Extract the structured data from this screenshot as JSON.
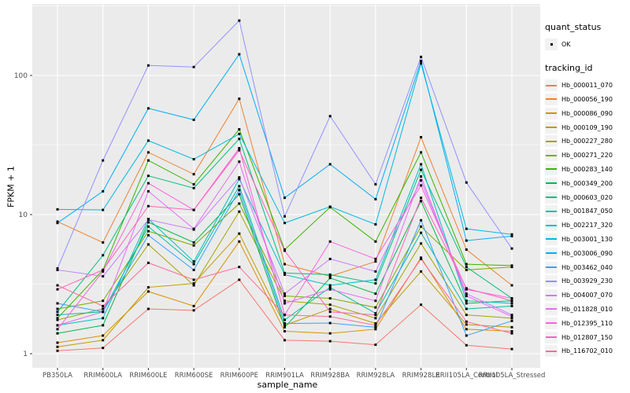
{
  "chart_data": {
    "type": "line",
    "title": "",
    "xlabel": "sample_name",
    "ylabel": "FPKM + 1",
    "y_scale": "log10",
    "y_ticks": [
      1,
      10,
      100
    ],
    "ylim": [
      0.67,
      290
    ],
    "grid": "white major+minor gridlines on grey panel",
    "legend_position": "right",
    "panel_bg": "#EBEBEB",
    "x_categories": [
      "PB350LA",
      "RRIM600LA",
      "RRIM600LE",
      "RRIM600SE",
      "RRIM600PE",
      "RRIM901LA",
      "RRIM928BA",
      "RRIM928LA",
      "RRIM928LE",
      "RRII105LA_Control",
      "RRII105LA_Stressed"
    ],
    "point_shape": "small black square (quant_status OK)",
    "series": [
      {
        "tracking_id": "Hb_000011_070",
        "color": "#F8766D",
        "values": [
          1.05,
          1.1,
          2.1,
          2.05,
          3.4,
          1.25,
          1.23,
          1.16,
          2.25,
          1.15,
          1.08
        ]
      },
      {
        "tracking_id": "Hb_000056_190",
        "color": "#EA8331",
        "values": [
          8.9,
          6.3,
          28.0,
          19.5,
          68.0,
          4.4,
          3.6,
          4.6,
          36.0,
          5.6,
          3.1
        ]
      },
      {
        "tracking_id": "Hb_000086_090",
        "color": "#D89000",
        "values": [
          1.2,
          1.35,
          2.8,
          2.2,
          6.4,
          1.45,
          1.4,
          1.5,
          4.9,
          1.5,
          1.45
        ]
      },
      {
        "tracking_id": "Hb_000109_190",
        "color": "#C09B00",
        "values": [
          1.12,
          1.25,
          3.0,
          3.2,
          7.3,
          1.6,
          2.1,
          1.65,
          3.9,
          1.62,
          1.55
        ]
      },
      {
        "tracking_id": "Hb_000227_280",
        "color": "#A3A500",
        "values": [
          1.75,
          2.1,
          6.1,
          3.1,
          10.5,
          2.4,
          2.25,
          1.8,
          6.2,
          1.9,
          1.8
        ]
      },
      {
        "tracking_id": "Hb_000271_220",
        "color": "#7CAE00",
        "values": [
          2.1,
          2.4,
          7.6,
          6.0,
          12.0,
          2.6,
          2.5,
          2.15,
          8.2,
          4.0,
          4.2
        ]
      },
      {
        "tracking_id": "Hb_000283_140",
        "color": "#39B600",
        "values": [
          1.8,
          4.0,
          24.5,
          16.5,
          41.0,
          5.6,
          11.3,
          6.4,
          28.0,
          4.4,
          4.3
        ]
      },
      {
        "tracking_id": "Hb_000349_200",
        "color": "#00BB4E",
        "values": [
          1.4,
          1.6,
          8.8,
          6.3,
          14.0,
          1.55,
          3.5,
          2.7,
          12.5,
          2.3,
          2.4
        ]
      },
      {
        "tracking_id": "Hb_000603_020",
        "color": "#00BF7D",
        "values": [
          2.0,
          5.1,
          19.0,
          15.5,
          35.0,
          3.8,
          3.7,
          3.2,
          21.0,
          4.2,
          2.5
        ]
      },
      {
        "tracking_id": "Hb_001847_050",
        "color": "#00C1A3",
        "values": [
          1.9,
          2.0,
          8.2,
          4.4,
          16.0,
          1.75,
          3.0,
          1.95,
          7.4,
          2.1,
          2.2
        ]
      },
      {
        "tracking_id": "Hb_002217_320",
        "color": "#00BFC4",
        "values": [
          1.6,
          1.8,
          9.3,
          4.6,
          18.0,
          3.7,
          3.1,
          3.4,
          23.0,
          2.4,
          2.3
        ]
      },
      {
        "tracking_id": "Hb_003001_130",
        "color": "#00BAE0",
        "values": [
          10.9,
          10.8,
          34.0,
          25.0,
          38.0,
          8.7,
          11.4,
          8.5,
          122,
          7.9,
          7.2
        ]
      },
      {
        "tracking_id": "Hb_003006_090",
        "color": "#00B0F6",
        "values": [
          8.7,
          14.7,
          58.0,
          48.0,
          142,
          13.2,
          23.0,
          12.9,
          127,
          6.5,
          7.0
        ]
      },
      {
        "tracking_id": "Hb_003462_040",
        "color": "#35A2FF",
        "values": [
          2.3,
          2.0,
          7.1,
          4.0,
          15.0,
          1.65,
          1.66,
          1.55,
          9.1,
          1.35,
          1.72
        ]
      },
      {
        "tracking_id": "Hb_003929_230",
        "color": "#9590FF",
        "values": [
          4.1,
          24.5,
          118,
          115,
          248,
          9.7,
          51.0,
          16.5,
          136,
          17.0,
          5.7
        ]
      },
      {
        "tracking_id": "Hb_004007_070",
        "color": "#C77CFF",
        "values": [
          4.0,
          3.6,
          9.2,
          7.8,
          18.5,
          2.7,
          4.8,
          3.9,
          17.6,
          2.7,
          1.9
        ]
      },
      {
        "tracking_id": "Hb_011828_010",
        "color": "#E76BF3",
        "values": [
          1.6,
          2.0,
          14.7,
          7.9,
          24.0,
          2.3,
          2.9,
          2.4,
          18.8,
          2.6,
          1.85
        ]
      },
      {
        "tracking_id": "Hb_012395_110",
        "color": "#FA62DB",
        "values": [
          1.5,
          3.9,
          16.8,
          10.8,
          30.0,
          1.9,
          6.4,
          4.8,
          16.2,
          2.9,
          2.5
        ]
      },
      {
        "tracking_id": "Hb_012807_150",
        "color": "#FF62BC",
        "values": [
          2.9,
          4.0,
          11.5,
          10.8,
          29.0,
          5.5,
          2.0,
          1.9,
          13.2,
          2.95,
          2.4
        ]
      },
      {
        "tracking_id": "Hb_116702_010",
        "color": "#FF6A98",
        "values": [
          3.1,
          2.2,
          4.5,
          3.4,
          4.2,
          1.9,
          1.85,
          1.6,
          4.8,
          1.7,
          1.4
        ]
      }
    ]
  },
  "legend": {
    "quant_status": {
      "title": "quant_status",
      "items": [
        {
          "label": "OK",
          "marker_color": "#000000"
        }
      ]
    },
    "tracking_id": {
      "title": "tracking_id"
    }
  },
  "axes": {
    "x_title": "sample_name",
    "y_title": "FPKM + 1",
    "tick_label_color": "#4D4D4D",
    "tick_mark_color": "#333333"
  }
}
